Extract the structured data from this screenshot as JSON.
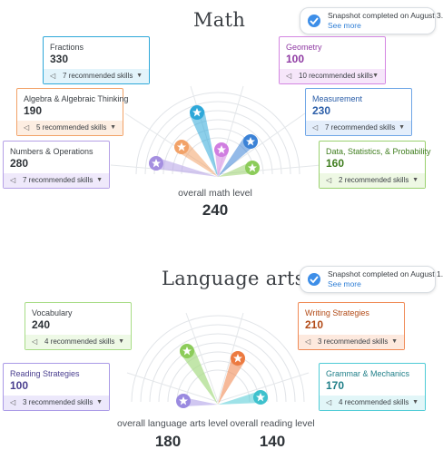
{
  "math": {
    "title": "Math",
    "snapshot": {
      "text": "Snapshot completed on August 3.",
      "link": "See more"
    },
    "overall_label": "overall math level",
    "overall_value": "240",
    "cards": [
      {
        "name": "Fractions",
        "score": "330",
        "rec": "7 recommended skills",
        "color": "#2ea8d9"
      },
      {
        "name": "Algebra & Algebraic Thinking",
        "score": "190",
        "rec": "5 recommended skills",
        "color": "#f2a268"
      },
      {
        "name": "Numbers & Operations",
        "score": "280",
        "rec": "7 recommended skills",
        "color": "#b5a0e6"
      },
      {
        "name": "Geometry",
        "score": "100",
        "rec": "10 recommended skills",
        "color": "#d486e2"
      },
      {
        "name": "Measurement",
        "score": "230",
        "rec": "7 recommended skills",
        "color": "#3b82d6"
      },
      {
        "name": "Data, Statistics, & Probability",
        "score": "160",
        "rec": "2 recommended skills",
        "color": "#9ad16e"
      }
    ]
  },
  "ela": {
    "title": "Language arts",
    "snapshot": {
      "text": "Snapshot completed on August 1.",
      "link": "See more"
    },
    "overall_label": "overall language arts level",
    "overall_value": "180",
    "reading_label": "overall reading level",
    "reading_value": "140",
    "cards": [
      {
        "name": "Vocabulary",
        "score": "240",
        "rec": "4 recommended skills",
        "color": "#a8dc86"
      },
      {
        "name": "Reading Strategies",
        "score": "100",
        "rec": "3 recommended skills",
        "color": "#a999e6"
      },
      {
        "name": "Writing Strategies",
        "score": "210",
        "rec": "3 recommended skills",
        "color": "#f08a55"
      },
      {
        "name": "Grammar & Mechanics",
        "score": "170",
        "rec": "4 recommended skills",
        "color": "#4ecbd6"
      }
    ]
  },
  "icons": {
    "skills": "megaphone-icon",
    "expand": "chevron-down-icon",
    "check": "check-circle-icon",
    "marker": "star-icon"
  }
}
